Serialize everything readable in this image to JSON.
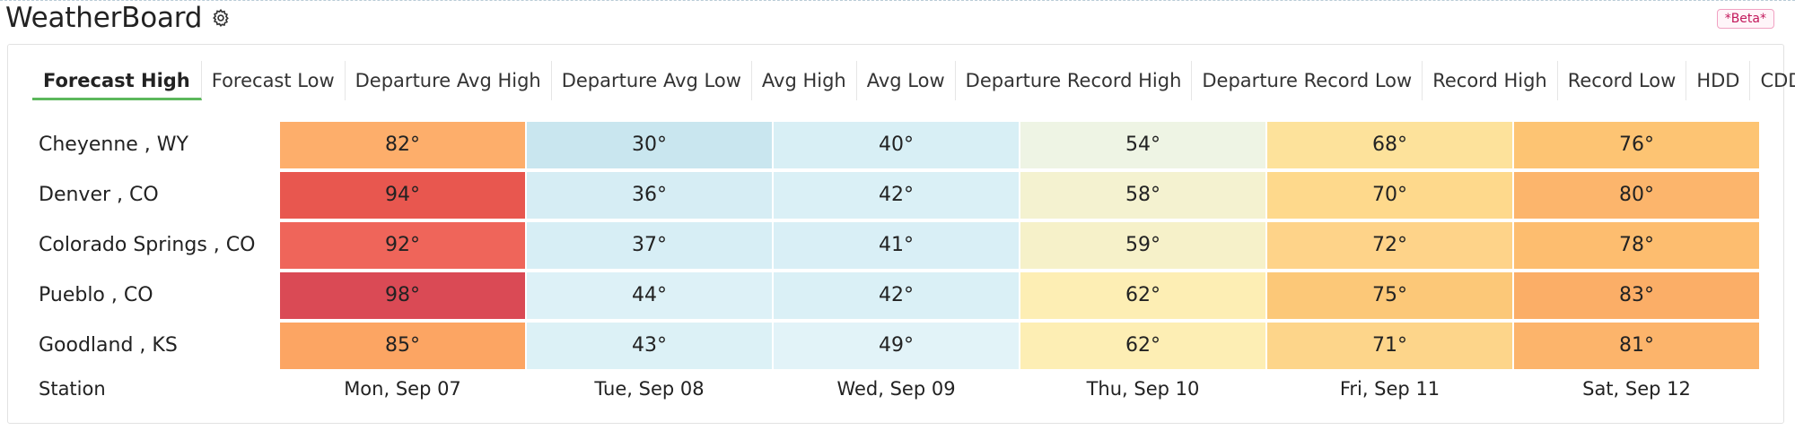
{
  "app": {
    "title": "WeatherBoard",
    "beta_label": "*Beta*"
  },
  "tabs": [
    {
      "label": "Forecast High",
      "active": true
    },
    {
      "label": "Forecast Low"
    },
    {
      "label": "Departure Avg High"
    },
    {
      "label": "Departure Avg Low"
    },
    {
      "label": "Avg High"
    },
    {
      "label": "Avg Low"
    },
    {
      "label": "Departure Record High"
    },
    {
      "label": "Departure Record Low"
    },
    {
      "label": "Record High"
    },
    {
      "label": "Record Low"
    },
    {
      "label": "HDD"
    },
    {
      "label": "CDD"
    }
  ],
  "table": {
    "station_header": "Station",
    "days": [
      "Mon, Sep 07",
      "Tue, Sep 08",
      "Wed, Sep 09",
      "Thu, Sep 10",
      "Fri, Sep 11",
      "Sat, Sep 12"
    ],
    "rows": [
      {
        "station": "Cheyenne , WY",
        "temps": [
          "82°",
          "30°",
          "40°",
          "54°",
          "68°",
          "76°"
        ],
        "colors": [
          "#fdae6b",
          "#c9e6ef",
          "#d8eff5",
          "#eef4e4",
          "#fde29b",
          "#fdc473"
        ]
      },
      {
        "station": "Denver , CO",
        "temps": [
          "94°",
          "36°",
          "42°",
          "58°",
          "70°",
          "80°"
        ],
        "colors": [
          "#e8574f",
          "#d6edf4",
          "#daf0f6",
          "#f4f2d0",
          "#fed98c",
          "#fcb56c"
        ]
      },
      {
        "station": "Colorado Springs , CO",
        "temps": [
          "92°",
          "37°",
          "41°",
          "59°",
          "72°",
          "78°"
        ],
        "colors": [
          "#ef655a",
          "#d7eef5",
          "#d9eff6",
          "#f6f1c9",
          "#fed389",
          "#fdbd6f"
        ]
      },
      {
        "station": "Pueblo , CO",
        "temps": [
          "98°",
          "44°",
          "42°",
          "62°",
          "75°",
          "83°"
        ],
        "colors": [
          "#da4a55",
          "#ddf1f7",
          "#daf0f6",
          "#fdeeb4",
          "#fcc878",
          "#fbae67"
        ]
      },
      {
        "station": "Goodland , KS",
        "temps": [
          "85°",
          "43°",
          "49°",
          "62°",
          "71°",
          "81°"
        ],
        "colors": [
          "#fca563",
          "#dcf1f6",
          "#e2f3f8",
          "#fdeeb4",
          "#fdd58a",
          "#fcb46b"
        ]
      }
    ]
  }
}
